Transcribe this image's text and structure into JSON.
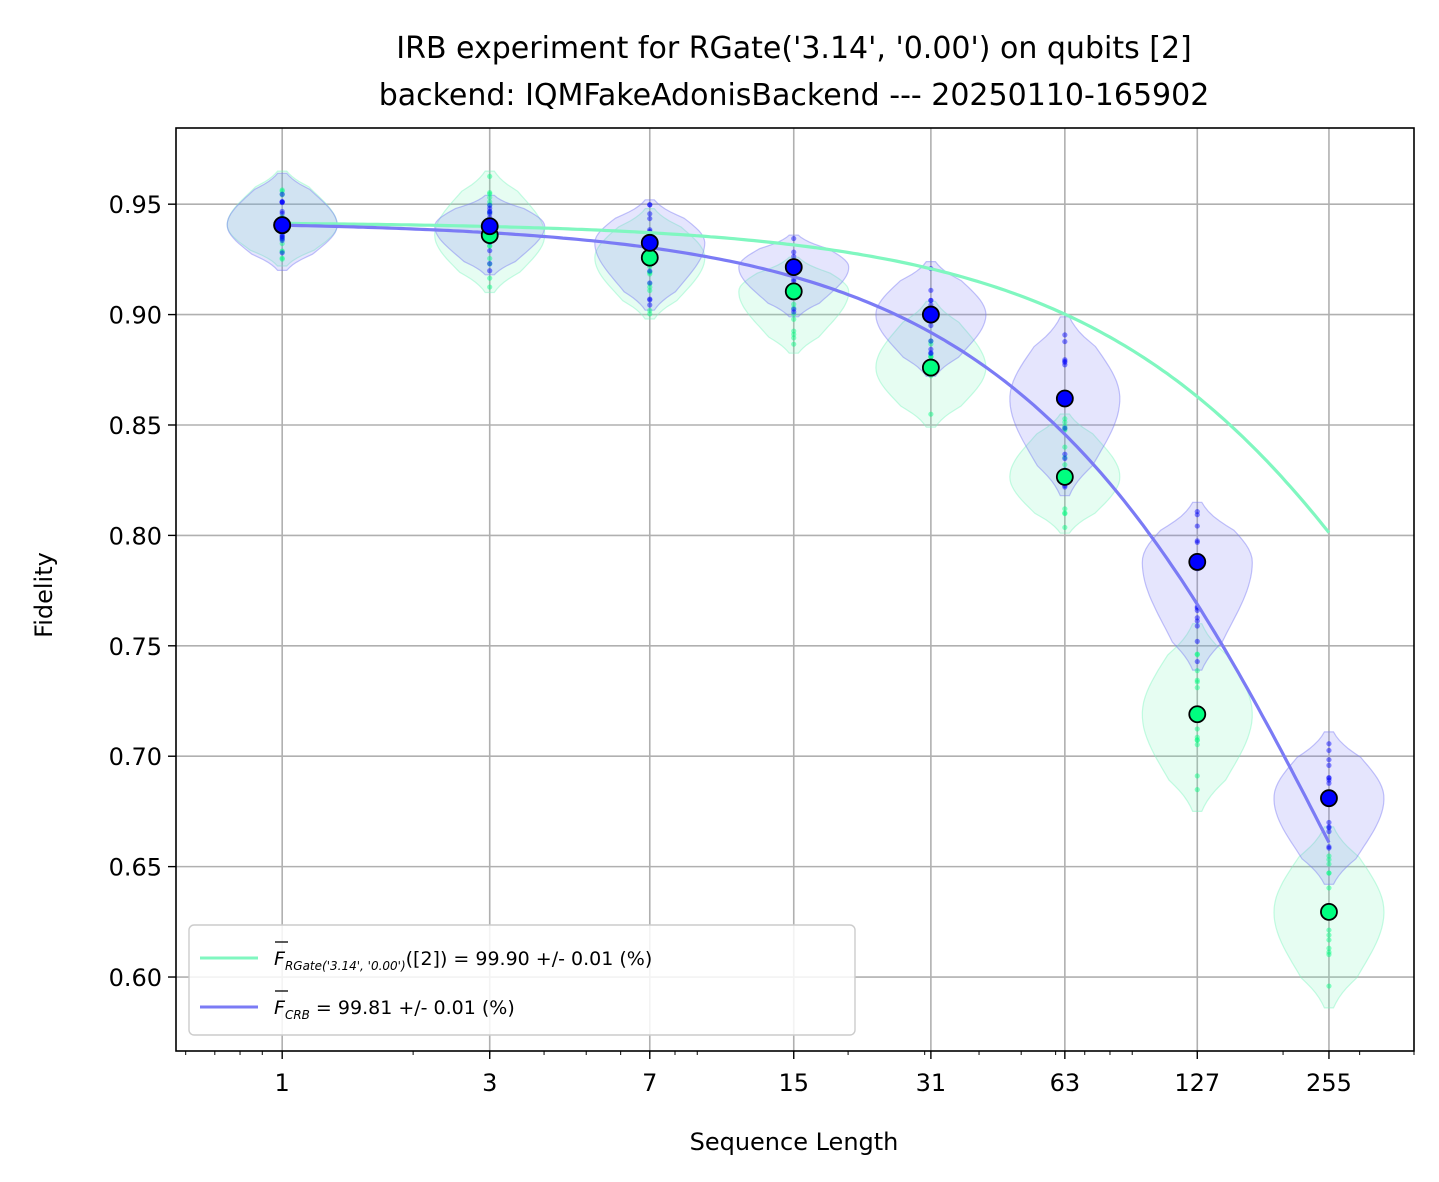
{
  "chart_data": {
    "type": "scatter",
    "title": "IRB experiment for RGate('3.14', '0.00') on qubits [2]",
    "subtitle": "backend: IQMFakeAdonisBackend --- 20250110-165902",
    "xlabel": "Sequence Length",
    "ylabel": "Fidelity",
    "xscale": "log",
    "xlim": [
      0.57,
      400
    ],
    "ylim": [
      0.5665,
      0.9845
    ],
    "xticks": [
      1,
      3,
      7,
      15,
      31,
      63,
      127,
      255
    ],
    "xtick_labels": [
      "1",
      "3",
      "7",
      "15",
      "31",
      "63",
      "127",
      "255"
    ],
    "yticks": [
      0.6,
      0.65,
      0.7,
      0.75,
      0.8,
      0.85,
      0.9,
      0.95
    ],
    "ytick_labels": [
      "0.60",
      "0.65",
      "0.70",
      "0.75",
      "0.80",
      "0.85",
      "0.90",
      "0.95"
    ],
    "grid": true,
    "legend_position": "lower-left",
    "series": [
      {
        "key": "irb",
        "legend_main": "F",
        "legend_sub": "RGate('3.14', '0.00')",
        "legend_rest": "([2]) = 99.90 +/- 0.01 (%)",
        "color": "#80f7c0",
        "marker_color": "#00ff80",
        "x": [
          1,
          3,
          7,
          15,
          31,
          63,
          127,
          255
        ],
        "mean": [
          0.9405,
          0.936,
          0.9258,
          0.9105,
          0.876,
          0.8265,
          0.719,
          0.6295
        ],
        "violin_min": [
          0.922,
          0.91,
          0.898,
          0.8825,
          0.849,
          0.801,
          0.675,
          0.586
        ],
        "violin_max": [
          0.965,
          0.965,
          0.948,
          0.926,
          0.906,
          0.855,
          0.76,
          0.668
        ],
        "fit_a": 0.348,
        "fit_p": 0.99797,
        "fit_b": 0.594
      },
      {
        "key": "crb",
        "legend_main": "F",
        "legend_sub": "CRB",
        "legend_rest": " = 99.81 +/- 0.01 (%)",
        "color": "#7b7bf5",
        "marker_color": "#0000ff",
        "x": [
          1,
          3,
          7,
          15,
          31,
          63,
          127,
          255
        ],
        "mean": [
          0.9405,
          0.94,
          0.9325,
          0.9215,
          0.9,
          0.862,
          0.788,
          0.681
        ],
        "violin_min": [
          0.92,
          0.918,
          0.902,
          0.899,
          0.872,
          0.818,
          0.739,
          0.642
        ],
        "violin_max": [
          0.964,
          0.954,
          0.952,
          0.936,
          0.924,
          0.899,
          0.815,
          0.711
        ],
        "fit_a": 0.4542,
        "fit_p": 0.99622,
        "fit_b": 0.488
      }
    ]
  }
}
